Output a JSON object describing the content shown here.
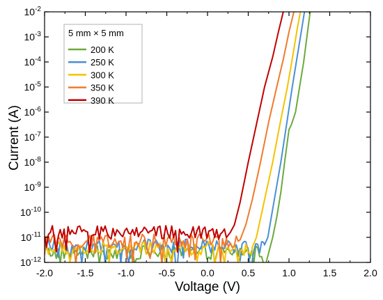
{
  "chart_data": {
    "type": "line",
    "title": "",
    "xlabel": "Voltage (V)",
    "ylabel": "Current (A)",
    "xlim": [
      -2.0,
      2.0
    ],
    "ylim_log10": [
      -12,
      -2
    ],
    "yscale": "log",
    "grid": false,
    "legend_position": "top-left",
    "legend_title": "5 mm × 5 mm",
    "x_ticks": [
      "-2.0",
      "-1.5",
      "-1.0",
      "-0.5",
      "0.0",
      "0.5",
      "1.0",
      "1.5",
      "2.0"
    ],
    "y_ticks": [
      {
        "base": "10",
        "exp": "-12"
      },
      {
        "base": "10",
        "exp": "-11"
      },
      {
        "base": "10",
        "exp": "-10"
      },
      {
        "base": "10",
        "exp": "-9"
      },
      {
        "base": "10",
        "exp": "-8"
      },
      {
        "base": "10",
        "exp": "-7"
      },
      {
        "base": "10",
        "exp": "-6"
      },
      {
        "base": "10",
        "exp": "-5"
      },
      {
        "base": "10",
        "exp": "-4"
      },
      {
        "base": "10",
        "exp": "-3"
      },
      {
        "base": "10",
        "exp": "-2"
      }
    ],
    "series": [
      {
        "name": "200 K",
        "color": "#6aaa3a",
        "noise_floor_log10": -11.6,
        "curve": [
          [
            0.72,
            -12.0
          ],
          [
            0.8,
            -11.0
          ],
          [
            0.85,
            -10.2
          ],
          [
            0.9,
            -9.2
          ],
          [
            0.95,
            -7.9
          ],
          [
            1.0,
            -6.7
          ],
          [
            1.03,
            -6.5
          ],
          [
            1.08,
            -6.0
          ],
          [
            1.13,
            -5.0
          ],
          [
            1.18,
            -4.0
          ],
          [
            1.22,
            -3.0
          ],
          [
            1.26,
            -2.0
          ]
        ]
      },
      {
        "name": "250 K",
        "color": "#4a8fd6",
        "noise_floor_log10": -11.35,
        "curve": [
          [
            0.7,
            -11.3
          ],
          [
            0.74,
            -11.0
          ],
          [
            0.82,
            -9.5
          ],
          [
            0.9,
            -8.0
          ],
          [
            0.97,
            -6.5
          ],
          [
            1.04,
            -5.0
          ],
          [
            1.1,
            -3.8
          ],
          [
            1.15,
            -2.8
          ],
          [
            1.19,
            -2.0
          ]
        ]
      },
      {
        "name": "300 K",
        "color": "#f5c200",
        "noise_floor_log10": -11.45,
        "curve": [
          [
            0.55,
            -11.4
          ],
          [
            0.6,
            -11.0
          ],
          [
            0.7,
            -9.5
          ],
          [
            0.8,
            -8.0
          ],
          [
            0.9,
            -6.3
          ],
          [
            0.98,
            -5.0
          ],
          [
            1.05,
            -3.7
          ],
          [
            1.1,
            -2.7
          ],
          [
            1.14,
            -2.0
          ]
        ]
      },
      {
        "name": "350 K",
        "color": "#f07a2e",
        "noise_floor_log10": -11.15,
        "curve": [
          [
            0.4,
            -11.1
          ],
          [
            0.47,
            -10.5
          ],
          [
            0.55,
            -9.5
          ],
          [
            0.65,
            -8.0
          ],
          [
            0.75,
            -6.4
          ],
          [
            0.85,
            -5.0
          ],
          [
            0.93,
            -3.9
          ],
          [
            1.0,
            -2.8
          ],
          [
            1.06,
            -2.0
          ]
        ]
      },
      {
        "name": "390 K",
        "color": "#c00000",
        "noise_floor_log10": -10.8,
        "curve": [
          [
            0.28,
            -10.8
          ],
          [
            0.33,
            -10.5
          ],
          [
            0.4,
            -9.6
          ],
          [
            0.5,
            -8.0
          ],
          [
            0.6,
            -6.5
          ],
          [
            0.7,
            -5.0
          ],
          [
            0.8,
            -3.8
          ],
          [
            0.87,
            -2.8
          ],
          [
            0.93,
            -2.0
          ]
        ]
      }
    ]
  }
}
